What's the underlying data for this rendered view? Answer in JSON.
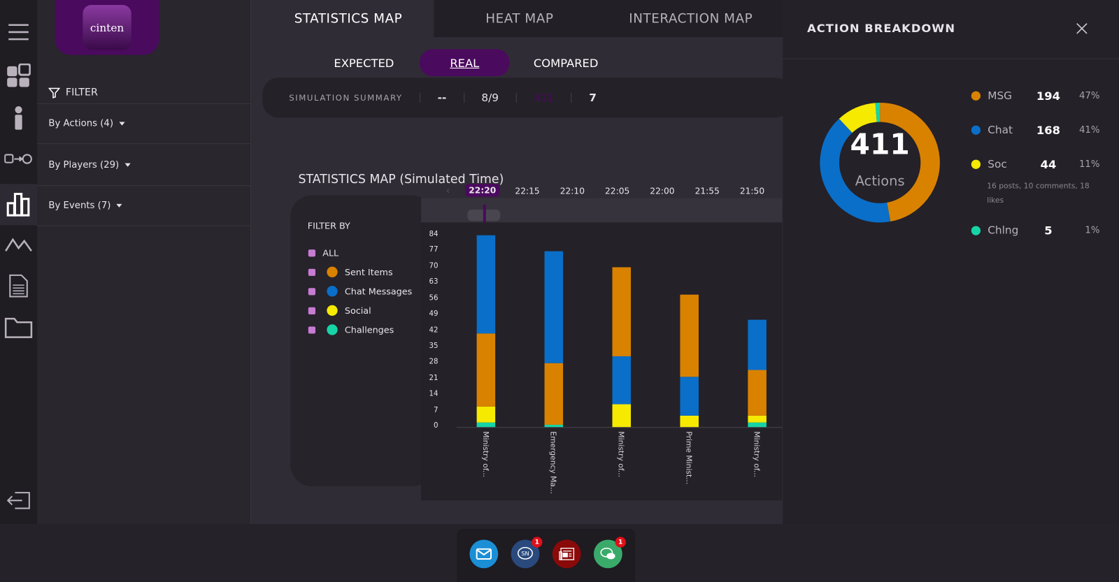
{
  "logo": {
    "text": "cinten"
  },
  "rail": {
    "icons": [
      "menu-icon",
      "dashboard-icon",
      "info-icon",
      "flow-icon",
      "bar-chart-icon",
      "mountain-chart-icon",
      "document-icon",
      "folder-icon",
      "logout-icon"
    ],
    "active": "bar-chart-icon"
  },
  "filter": {
    "title": "FILTER",
    "groups": [
      {
        "label": "By Actions (4)"
      },
      {
        "label": "By Players (29)"
      },
      {
        "label": "By Events (7)"
      }
    ]
  },
  "tabs": [
    {
      "label": "STATISTICS MAP",
      "active": true
    },
    {
      "label": "HEAT MAP"
    },
    {
      "label": "INTERACTION MAP"
    }
  ],
  "subtabs": [
    {
      "label": "EXPECTED"
    },
    {
      "label": "REAL",
      "active": true
    },
    {
      "label": "COMPARED"
    }
  ],
  "summary": {
    "label": "SIMULATION SUMMARY",
    "values": [
      "--",
      "8/9",
      "411",
      "7"
    ]
  },
  "chart_title": "STATISTICS MAP (Simulated Time)",
  "timeline": {
    "times": [
      "22:20",
      "22:15",
      "22:10",
      "22:05",
      "22:00",
      "21:55",
      "21:50"
    ],
    "selected": "22:20"
  },
  "filter_by": {
    "title": "FILTER BY",
    "items": [
      {
        "label": "ALL"
      },
      {
        "label": "Sent Items",
        "color": "#d98200"
      },
      {
        "label": "Chat Messages",
        "color": "#0a6fc9"
      },
      {
        "label": "Social",
        "color": "#f5ea00"
      },
      {
        "label": "Challenges",
        "color": "#17d4a6"
      }
    ]
  },
  "chart_data": {
    "type": "bar",
    "stacked": true,
    "categories": [
      "Ministry of...",
      "Emergency Ma...",
      "Ministry of...",
      "Prime Minist...",
      "Ministry of..."
    ],
    "yticks": [
      0,
      7,
      14,
      21,
      28,
      35,
      42,
      49,
      56,
      63,
      70,
      77,
      84
    ],
    "ylim": [
      0,
      84
    ],
    "series": [
      {
        "name": "Challenges",
        "color": "#17d4a6",
        "values": [
          2,
          1,
          0,
          0,
          2
        ]
      },
      {
        "name": "Social",
        "color": "#f5ea00",
        "values": [
          7,
          0,
          10,
          5,
          3
        ]
      },
      {
        "name": "Sent Items",
        "color": "#d98200",
        "values": [
          32,
          27,
          39,
          36,
          20
        ]
      },
      {
        "name": "Chat Messages",
        "color": "#0a6fc9",
        "values": [
          43,
          49,
          21,
          17,
          22
        ]
      }
    ],
    "stack_order": [
      [
        "Challenges",
        "Social",
        "Sent Items",
        "Chat Messages"
      ],
      [
        "Challenges",
        "Sent Items",
        "Chat Messages"
      ],
      [
        "Challenges",
        "Social",
        "Chat Messages",
        "Sent Items"
      ],
      [
        "Challenges",
        "Social",
        "Chat Messages",
        "Sent Items"
      ],
      [
        "Challenges",
        "Social",
        "Sent Items",
        "Chat Messages"
      ]
    ]
  },
  "breakdown": {
    "title": "ACTION BREAKDOWN",
    "total": "411",
    "total_label": "Actions",
    "items": [
      {
        "label": "MSG",
        "value": "194",
        "pct": "47%",
        "color": "#d98200",
        "n": 194
      },
      {
        "label": "Chat",
        "value": "168",
        "pct": "41%",
        "color": "#0a6fc9",
        "n": 168
      },
      {
        "label": "Soc",
        "value": "44",
        "pct": "11%",
        "color": "#f5ea00",
        "n": 44,
        "note": "16 posts, 10 comments, 18 likes"
      },
      {
        "label": "Chlng",
        "value": "5",
        "pct": "1%",
        "color": "#17d4a6",
        "n": 5
      }
    ]
  },
  "dock": [
    {
      "icon": "mail-icon",
      "color": "#1a8fd6"
    },
    {
      "icon": "social-network-icon",
      "color": "#2a4a7e",
      "text": "SN",
      "badge": "1"
    },
    {
      "icon": "news-icon",
      "color": "#8a0a0a"
    },
    {
      "icon": "chat-icon",
      "color": "#3aaa6a",
      "badge": "1"
    }
  ]
}
